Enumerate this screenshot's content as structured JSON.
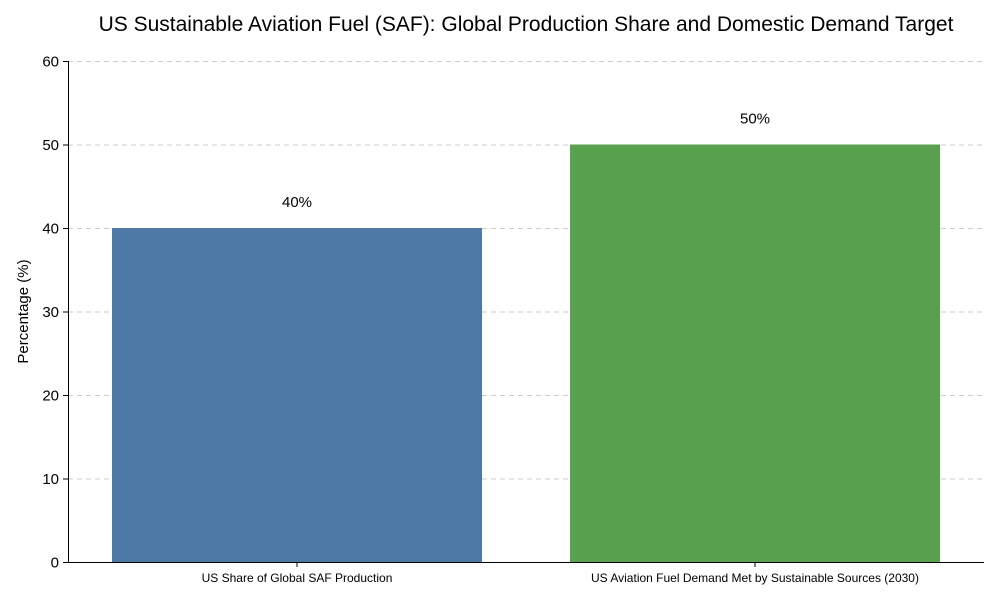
{
  "chart_data": {
    "type": "bar",
    "title": "US Sustainable Aviation Fuel (SAF): Global Production Share and Domestic Demand Target",
    "xlabel": "",
    "ylabel": "Percentage (%)",
    "ylim": [
      0,
      60
    ],
    "yticks": [
      0,
      10,
      20,
      30,
      40,
      50,
      60
    ],
    "grid": true,
    "categories": [
      "US Share of Global SAF Production",
      "US Aviation Fuel Demand Met by Sustainable Sources (2030)"
    ],
    "values": [
      40,
      50
    ],
    "data_labels": [
      "40%",
      "50%"
    ],
    "colors": [
      "#4e79a7",
      "#59a14f"
    ]
  }
}
